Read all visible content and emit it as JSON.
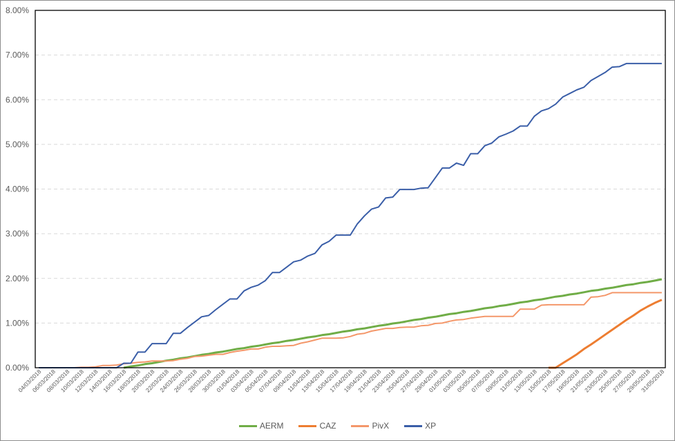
{
  "chart_data": {
    "type": "line",
    "title": "",
    "xlabel": "",
    "ylabel": "",
    "ylim": [
      0,
      8
    ],
    "y_ticks": [
      "0.00%",
      "1.00%",
      "2.00%",
      "3.00%",
      "4.00%",
      "5.00%",
      "6.00%",
      "7.00%",
      "8.00%"
    ],
    "y_tick_values": [
      0,
      1,
      2,
      3,
      4,
      5,
      6,
      7,
      8
    ],
    "y_unit": "%",
    "grid": "horizontal dashed",
    "legend_position": "bottom",
    "x": [
      "04/03/2018",
      "05/03/2018",
      "06/03/2018",
      "07/03/2018",
      "08/03/2018",
      "09/03/2018",
      "10/03/2018",
      "11/03/2018",
      "12/03/2018",
      "13/03/2018",
      "14/03/2018",
      "15/03/2018",
      "16/03/2018",
      "17/03/2018",
      "18/03/2018",
      "19/03/2018",
      "20/03/2018",
      "21/03/2018",
      "22/03/2018",
      "23/03/2018",
      "24/03/2018",
      "25/03/2018",
      "26/03/2018",
      "27/03/2018",
      "28/03/2018",
      "29/03/2018",
      "30/03/2018",
      "31/03/2018",
      "01/04/2018",
      "02/04/2018",
      "03/04/2018",
      "04/04/2018",
      "05/04/2018",
      "06/04/2018",
      "07/04/2018",
      "08/04/2018",
      "09/04/2018",
      "10/04/2018",
      "11/04/2018",
      "12/04/2018",
      "13/04/2018",
      "14/04/2018",
      "15/04/2018",
      "16/04/2018",
      "17/04/2018",
      "18/04/2018",
      "19/04/2018",
      "20/04/2018",
      "21/04/2018",
      "22/04/2018",
      "23/04/2018",
      "24/04/2018",
      "25/04/2018",
      "26/04/2018",
      "27/04/2018",
      "28/04/2018",
      "29/04/2018",
      "30/04/2018",
      "01/05/2018",
      "02/05/2018",
      "03/05/2018",
      "04/05/2018",
      "05/05/2018",
      "06/05/2018",
      "07/05/2018",
      "08/05/2018",
      "09/05/2018",
      "10/05/2018",
      "11/05/2018",
      "12/05/2018",
      "13/05/2018",
      "14/05/2018",
      "15/05/2018",
      "16/05/2018",
      "17/05/2018",
      "18/05/2018",
      "19/05/2018",
      "20/05/2018",
      "21/05/2018",
      "22/05/2018",
      "23/05/2018",
      "24/05/2018",
      "25/05/2018",
      "26/05/2018",
      "27/05/2018",
      "28/05/2018",
      "29/05/2018",
      "30/05/2018",
      "31/05/2018"
    ],
    "x_tick_every": 2,
    "series": [
      {
        "name": "AERM",
        "color": "#70AD47",
        "width": 3,
        "values": [
          null,
          null,
          null,
          null,
          null,
          null,
          null,
          null,
          null,
          null,
          null,
          null,
          0,
          0.03,
          0.05,
          0.08,
          0.1,
          0.13,
          0.16,
          0.18,
          0.21,
          0.23,
          0.26,
          0.29,
          0.31,
          0.34,
          0.36,
          0.39,
          0.42,
          0.44,
          0.47,
          0.49,
          0.52,
          0.55,
          0.57,
          0.6,
          0.62,
          0.65,
          0.68,
          0.7,
          0.73,
          0.75,
          0.78,
          0.81,
          0.83,
          0.86,
          0.88,
          0.91,
          0.94,
          0.96,
          0.99,
          1.01,
          1.04,
          1.07,
          1.09,
          1.12,
          1.14,
          1.17,
          1.2,
          1.22,
          1.25,
          1.27,
          1.3,
          1.33,
          1.35,
          1.38,
          1.4,
          1.43,
          1.46,
          1.48,
          1.51,
          1.53,
          1.56,
          1.59,
          1.61,
          1.64,
          1.66,
          1.69,
          1.72,
          1.74,
          1.77,
          1.79,
          1.82,
          1.85,
          1.87,
          1.9,
          1.92,
          1.95,
          1.98
        ]
      },
      {
        "name": "CAZ",
        "color": "#ED7D31",
        "width": 3,
        "values": [
          null,
          null,
          null,
          null,
          null,
          null,
          null,
          null,
          null,
          null,
          null,
          null,
          null,
          null,
          null,
          null,
          null,
          null,
          null,
          null,
          null,
          null,
          null,
          null,
          null,
          null,
          null,
          null,
          null,
          null,
          null,
          null,
          null,
          null,
          null,
          null,
          null,
          null,
          null,
          null,
          null,
          null,
          null,
          null,
          null,
          null,
          null,
          null,
          null,
          null,
          null,
          null,
          null,
          null,
          null,
          null,
          null,
          null,
          null,
          null,
          null,
          null,
          null,
          null,
          null,
          null,
          null,
          null,
          null,
          null,
          null,
          null,
          0,
          0,
          0.1,
          0.2,
          0.3,
          0.42,
          0.52,
          0.63,
          0.74,
          0.85,
          0.96,
          1.07,
          1.17,
          1.28,
          1.37,
          1.45,
          1.52
        ]
      },
      {
        "name": "PivX",
        "color": "#F4976A",
        "width": 2,
        "values": [
          0,
          0,
          0,
          0,
          0,
          0,
          0.01,
          0.01,
          0.02,
          0.05,
          0.05,
          0.06,
          0.09,
          0.1,
          0.12,
          0.13,
          0.15,
          0.15,
          0.15,
          0.16,
          0.19,
          0.21,
          0.25,
          0.26,
          0.28,
          0.3,
          0.3,
          0.34,
          0.37,
          0.39,
          0.42,
          0.42,
          0.46,
          0.48,
          0.48,
          0.49,
          0.5,
          0.55,
          0.58,
          0.62,
          0.66,
          0.66,
          0.66,
          0.67,
          0.7,
          0.75,
          0.77,
          0.82,
          0.85,
          0.88,
          0.88,
          0.9,
          0.91,
          0.91,
          0.94,
          0.95,
          0.99,
          1.0,
          1.04,
          1.07,
          1.08,
          1.11,
          1.13,
          1.15,
          1.15,
          1.15,
          1.15,
          1.15,
          1.31,
          1.31,
          1.31,
          1.4,
          1.41,
          1.41,
          1.41,
          1.41,
          1.41,
          1.41,
          1.58,
          1.59,
          1.62,
          1.68,
          1.68,
          1.68,
          1.68,
          1.68,
          1.68,
          1.68,
          1.68
        ]
      },
      {
        "name": "XP",
        "color": "#3A5EA8",
        "width": 2,
        "values": [
          0,
          0,
          0,
          0,
          0,
          0,
          0,
          0,
          0,
          0,
          0,
          0,
          0.1,
          0.1,
          0.35,
          0.35,
          0.54,
          0.54,
          0.54,
          0.77,
          0.77,
          0.9,
          1.02,
          1.14,
          1.17,
          1.3,
          1.42,
          1.54,
          1.54,
          1.72,
          1.8,
          1.85,
          1.95,
          2.13,
          2.13,
          2.25,
          2.37,
          2.41,
          2.5,
          2.56,
          2.75,
          2.83,
          2.97,
          2.97,
          2.97,
          3.22,
          3.4,
          3.55,
          3.6,
          3.8,
          3.82,
          3.99,
          3.99,
          3.99,
          4.02,
          4.03,
          4.25,
          4.47,
          4.47,
          4.58,
          4.53,
          4.79,
          4.79,
          4.97,
          5.03,
          5.17,
          5.23,
          5.3,
          5.41,
          5.41,
          5.63,
          5.75,
          5.8,
          5.9,
          6.06,
          6.14,
          6.22,
          6.28,
          6.43,
          6.52,
          6.61,
          6.73,
          6.74,
          6.81,
          6.81,
          6.81,
          6.81,
          6.81,
          6.81
        ]
      }
    ]
  }
}
